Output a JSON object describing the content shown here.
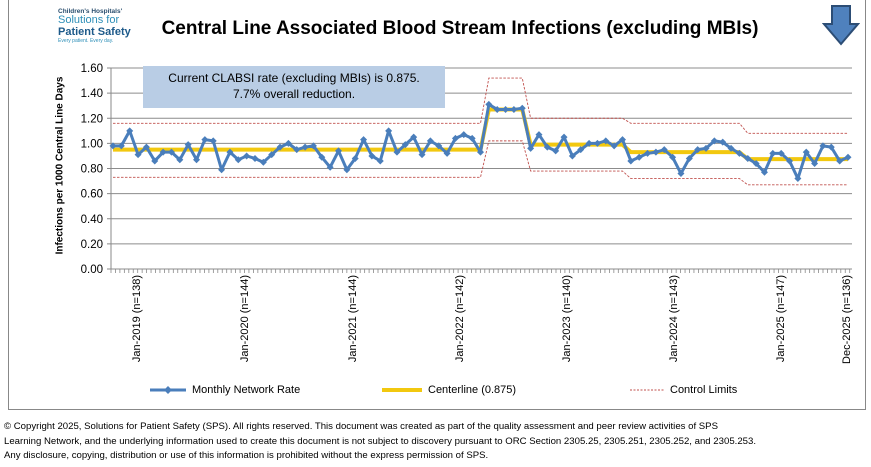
{
  "logo": {
    "line1": "Children's Hospitals'",
    "line2": "Solutions for",
    "line3": "Patient Safety",
    "line4": "Every patient. Every day."
  },
  "title": "Central Line Associated Blood Stream Infections (excluding MBIs)",
  "annotation": {
    "line1": "Current  CLABSI rate (excluding MBIs) is 0.875.",
    "line2": "7.7% overall  reduction."
  },
  "nav_icon": "down-arrow-icon",
  "chart_data": {
    "type": "line",
    "title": "Central Line Associated Blood Stream Infections (excluding MBIs)",
    "ylabel": "Infections per 1000 Central Line Days",
    "xlabel": "",
    "ylim": [
      0,
      1.6
    ],
    "y_ticks": [
      "0.00",
      "0.20",
      "0.40",
      "0.60",
      "0.80",
      "1.00",
      "1.20",
      "1.40",
      "1.60"
    ],
    "x_tick_labels": [
      "Jan-2019 (n=138)",
      "Jan-2020 (n=144)",
      "Jan-2021 (n=144)",
      "Jan-2022 (n=142)",
      "Jan-2023 (n=140)",
      "Jan-2024 (n=143)",
      "Jan-2025 (n=147)",
      "Dec-2025 (n=136)"
    ],
    "grid": true,
    "legend_position": "bottom",
    "series": [
      {
        "name": "Monthly Network Rate",
        "color": "#4a7ebb",
        "values": [
          0.98,
          0.98,
          1.1,
          0.91,
          0.97,
          0.86,
          0.93,
          0.93,
          0.87,
          0.99,
          0.87,
          1.03,
          1.02,
          0.79,
          0.93,
          0.87,
          0.9,
          0.88,
          0.85,
          0.91,
          0.97,
          1.0,
          0.95,
          0.97,
          0.98,
          0.89,
          0.81,
          0.94,
          0.79,
          0.88,
          1.03,
          0.9,
          0.86,
          1.1,
          0.93,
          0.99,
          1.05,
          0.91,
          1.02,
          0.98,
          0.92,
          1.04,
          1.07,
          1.04,
          0.93,
          1.31,
          1.27,
          1.27,
          1.27,
          1.28,
          0.96,
          1.07,
          0.97,
          0.94,
          1.05,
          0.9,
          0.95,
          1.0,
          1.0,
          1.02,
          0.98,
          1.03,
          0.86,
          0.89,
          0.92,
          0.93,
          0.95,
          0.89,
          0.76,
          0.88,
          0.95,
          0.96,
          1.02,
          1.01,
          0.96,
          0.92,
          0.88,
          0.84,
          0.77,
          0.92,
          0.92,
          0.86,
          0.72,
          0.93,
          0.84,
          0.98,
          0.97,
          0.86,
          0.89
        ]
      },
      {
        "name": "Centerline (0.875)",
        "color": "#f2c80f"
      },
      {
        "name": "Control Limits",
        "color": "#c0504d"
      }
    ],
    "phases": [
      {
        "start": 0,
        "end": 44,
        "centerline": 0.95,
        "ucl": 1.16,
        "lcl": 0.73
      },
      {
        "start": 45,
        "end": 49,
        "centerline": 1.27,
        "ucl": 1.52,
        "lcl": 1.02
      },
      {
        "start": 50,
        "end": 61,
        "centerline": 0.99,
        "ucl": 1.2,
        "lcl": 0.78
      },
      {
        "start": 62,
        "end": 75,
        "centerline": 0.93,
        "ucl": 1.16,
        "lcl": 0.72
      },
      {
        "start": 76,
        "end": 88,
        "centerline": 0.875,
        "ucl": 1.08,
        "lcl": 0.67
      }
    ]
  },
  "footer": {
    "line1": "© Copyright 2025, Solutions for Patient Safety (SPS).  All rights reserved.  This document was created as part of the quality assessment and peer review activities of SPS",
    "line2": "Learning Network, and the underlying information used to create this document is not subject to discovery pursuant to ORC Section 2305.25, 2305.251, 2305.252, and 2305.253.",
    "line3": "Any disclosure, copying, distribution or use of this information is prohibited without the express permission of SPS."
  }
}
